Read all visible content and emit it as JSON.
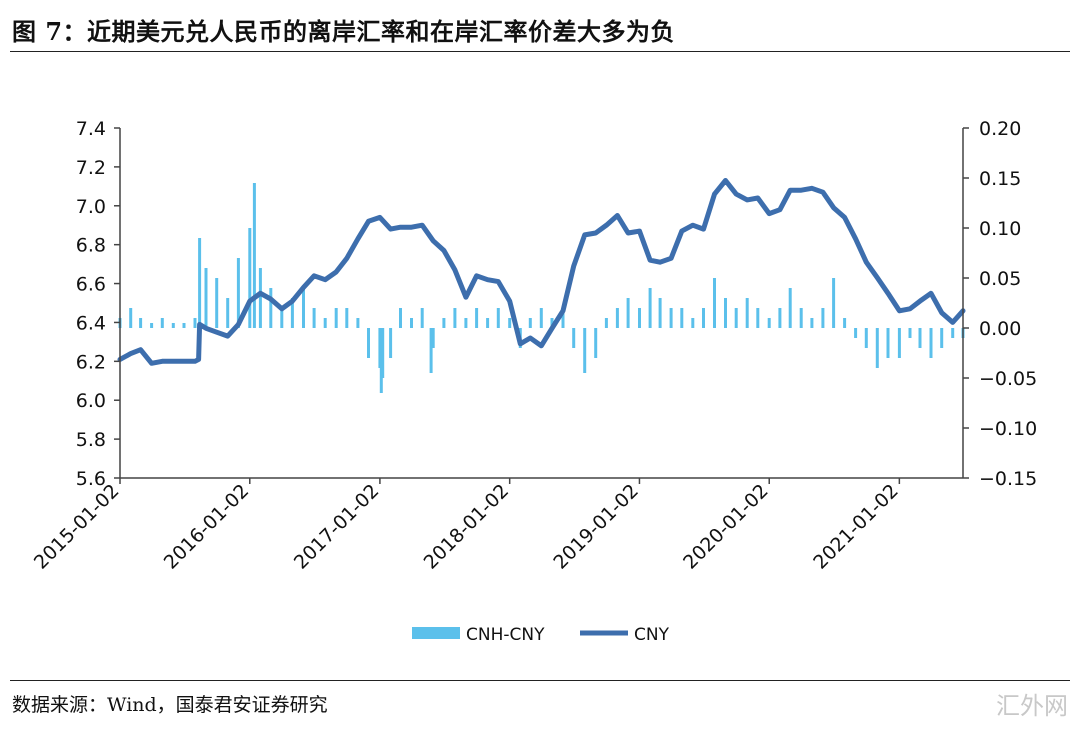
{
  "figure_title": "图 7：近期美元兑人民币的离岸汇率和在岸汇率价差大多为负",
  "source": "数据来源：Wind，国泰君安证券研究",
  "watermark": "汇外网",
  "colors": {
    "spread": "#5bc0eb",
    "cny": "#3d6ead",
    "axis": "#444444"
  },
  "chart_data": {
    "type": "line",
    "title": "",
    "xlabel": "",
    "ylabel": "",
    "y_left": {
      "ylim": [
        5.6,
        7.4
      ],
      "ticks": [
        "7.4",
        "7.2",
        "7.0",
        "6.8",
        "6.6",
        "6.4",
        "6.2",
        "6.0",
        "5.8",
        "5.6"
      ]
    },
    "y_right": {
      "ylim": [
        -0.15,
        0.2
      ],
      "ticks": [
        "0.20",
        "0.15",
        "0.10",
        "0.05",
        "0.00",
        "−0.05",
        "−0.10",
        "−0.15"
      ]
    },
    "x_ticks": [
      "2015-01-02",
      "2016-01-02",
      "2017-01-02",
      "2018-01-02",
      "2019-01-02",
      "2020-01-02",
      "2021-01-02"
    ],
    "x_range": [
      "2015-01-02",
      "2021-06-30"
    ],
    "grid": false,
    "legend": "bottom",
    "series": [
      {
        "name": "CNY",
        "kind": "line",
        "axis": "left",
        "x": [
          "2015-01-02",
          "2015-02-01",
          "2015-03-01",
          "2015-04-01",
          "2015-05-01",
          "2015-06-01",
          "2015-07-01",
          "2015-08-01",
          "2015-08-11",
          "2015-08-14",
          "2015-09-01",
          "2015-10-01",
          "2015-11-01",
          "2015-12-01",
          "2016-01-02",
          "2016-02-01",
          "2016-03-01",
          "2016-04-01",
          "2016-05-01",
          "2016-06-01",
          "2016-07-01",
          "2016-08-01",
          "2016-09-01",
          "2016-10-01",
          "2016-11-01",
          "2016-12-01",
          "2017-01-02",
          "2017-02-01",
          "2017-03-01",
          "2017-04-01",
          "2017-05-01",
          "2017-06-01",
          "2017-07-01",
          "2017-08-01",
          "2017-09-01",
          "2017-10-01",
          "2017-11-01",
          "2017-12-01",
          "2018-01-02",
          "2018-02-01",
          "2018-03-01",
          "2018-04-01",
          "2018-05-01",
          "2018-06-01",
          "2018-07-01",
          "2018-08-01",
          "2018-09-01",
          "2018-10-01",
          "2018-11-01",
          "2018-12-01",
          "2019-01-02",
          "2019-02-01",
          "2019-03-01",
          "2019-04-01",
          "2019-05-01",
          "2019-06-01",
          "2019-07-01",
          "2019-08-01",
          "2019-09-01",
          "2019-10-01",
          "2019-11-01",
          "2019-12-01",
          "2020-01-02",
          "2020-02-01",
          "2020-03-01",
          "2020-04-01",
          "2020-05-01",
          "2020-06-01",
          "2020-07-01",
          "2020-08-01",
          "2020-09-01",
          "2020-10-01",
          "2020-11-01",
          "2020-12-01",
          "2021-01-02",
          "2021-02-01",
          "2021-03-01",
          "2021-04-01",
          "2021-05-01",
          "2021-06-01",
          "2021-06-30"
        ],
        "values": [
          6.21,
          6.24,
          6.26,
          6.19,
          6.2,
          6.2,
          6.2,
          6.2,
          6.21,
          6.39,
          6.37,
          6.35,
          6.33,
          6.39,
          6.51,
          6.55,
          6.52,
          6.47,
          6.51,
          6.58,
          6.64,
          6.62,
          6.66,
          6.73,
          6.83,
          6.92,
          6.94,
          6.88,
          6.89,
          6.89,
          6.9,
          6.82,
          6.77,
          6.67,
          6.53,
          6.64,
          6.62,
          6.61,
          6.51,
          6.29,
          6.32,
          6.28,
          6.37,
          6.46,
          6.69,
          6.85,
          6.86,
          6.9,
          6.95,
          6.86,
          6.87,
          6.72,
          6.71,
          6.73,
          6.87,
          6.9,
          6.88,
          7.06,
          7.13,
          7.06,
          7.03,
          7.04,
          6.96,
          6.98,
          7.08,
          7.08,
          7.09,
          7.07,
          6.99,
          6.94,
          6.83,
          6.71,
          6.63,
          6.55,
          6.46,
          6.47,
          6.51,
          6.55,
          6.45,
          6.4,
          6.46
        ]
      },
      {
        "name": "CNH-CNY",
        "kind": "bar",
        "axis": "right",
        "x": [
          "2015-01-02",
          "2015-02-01",
          "2015-03-01",
          "2015-04-01",
          "2015-05-01",
          "2015-06-01",
          "2015-07-01",
          "2015-08-01",
          "2015-08-14",
          "2015-09-01",
          "2015-10-01",
          "2015-11-01",
          "2015-12-01",
          "2016-01-02",
          "2016-01-15",
          "2016-02-01",
          "2016-03-01",
          "2016-04-01",
          "2016-05-01",
          "2016-06-01",
          "2016-07-01",
          "2016-08-01",
          "2016-09-01",
          "2016-10-01",
          "2016-11-01",
          "2016-12-01",
          "2017-01-02",
          "2017-01-06",
          "2017-01-10",
          "2017-02-01",
          "2017-03-01",
          "2017-04-01",
          "2017-05-01",
          "2017-05-26",
          "2017-06-01",
          "2017-07-01",
          "2017-08-01",
          "2017-09-01",
          "2017-10-01",
          "2017-11-01",
          "2017-12-01",
          "2018-01-02",
          "2018-02-01",
          "2018-03-01",
          "2018-04-01",
          "2018-05-01",
          "2018-06-01",
          "2018-07-01",
          "2018-08-01",
          "2018-09-01",
          "2018-10-01",
          "2018-11-01",
          "2018-12-01",
          "2019-01-02",
          "2019-02-01",
          "2019-03-01",
          "2019-04-01",
          "2019-05-01",
          "2019-06-01",
          "2019-07-01",
          "2019-08-01",
          "2019-09-01",
          "2019-10-01",
          "2019-11-01",
          "2019-12-01",
          "2020-01-02",
          "2020-02-01",
          "2020-03-01",
          "2020-04-01",
          "2020-05-01",
          "2020-06-01",
          "2020-07-01",
          "2020-08-01",
          "2020-09-01",
          "2020-10-01",
          "2020-11-01",
          "2020-12-01",
          "2021-01-02",
          "2021-02-01",
          "2021-03-01",
          "2021-04-01",
          "2021-05-01",
          "2021-06-01",
          "2021-06-30"
        ],
        "values": [
          0.01,
          0.02,
          0.01,
          0.005,
          0.01,
          0.005,
          0.005,
          0.01,
          0.09,
          0.06,
          0.05,
          0.03,
          0.07,
          0.1,
          0.145,
          0.06,
          0.04,
          0.02,
          0.03,
          0.04,
          0.02,
          0.01,
          0.02,
          0.02,
          0.01,
          -0.03,
          -0.04,
          -0.065,
          -0.05,
          -0.03,
          0.02,
          0.01,
          0.02,
          -0.045,
          -0.02,
          0.01,
          0.02,
          0.01,
          0.02,
          0.01,
          0.02,
          0.01,
          -0.02,
          0.01,
          0.02,
          0.01,
          0.02,
          -0.02,
          -0.045,
          -0.03,
          0.01,
          0.02,
          0.03,
          0.02,
          0.04,
          0.03,
          0.02,
          0.02,
          0.01,
          0.02,
          0.05,
          0.03,
          0.02,
          0.03,
          0.02,
          0.01,
          0.02,
          0.04,
          0.02,
          0.01,
          0.02,
          0.05,
          0.01,
          -0.01,
          -0.02,
          -0.04,
          -0.03,
          -0.03,
          -0.01,
          -0.02,
          -0.03,
          -0.02,
          -0.01,
          -0.01
        ]
      }
    ]
  }
}
